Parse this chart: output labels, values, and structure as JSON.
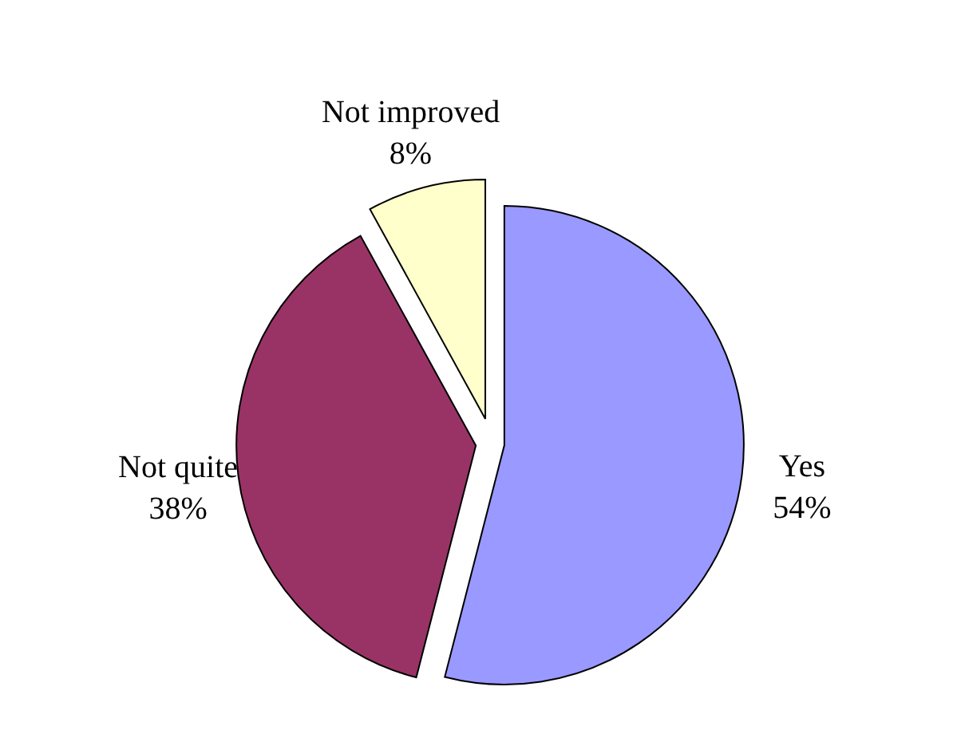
{
  "chart_data": {
    "type": "pie",
    "categories": [
      "Yes",
      "Not quite",
      "Not improved"
    ],
    "values": [
      54,
      38,
      8
    ],
    "colors": [
      "#9999ff",
      "#993366",
      "#ffffcc"
    ],
    "value_labels": [
      "54%",
      "38%",
      "8%"
    ],
    "legend": false
  }
}
